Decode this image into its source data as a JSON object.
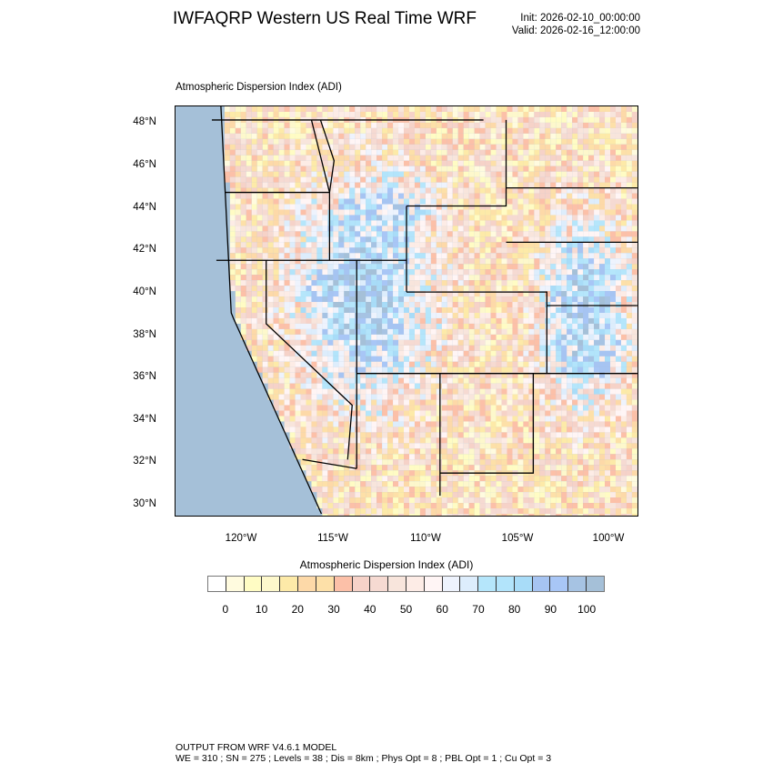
{
  "header": {
    "title": "IWFAQRP Western US Real Time WRF",
    "init": "Init: 2026-02-10_00:00:00",
    "valid": "Valid: 2026-02-16_12:00:00"
  },
  "map": {
    "subtitle": "Atmospheric Dispersion Index   (ADI)",
    "lat_labels": [
      "48°N",
      "46°N",
      "44°N",
      "42°N",
      "40°N",
      "38°N",
      "36°N",
      "34°N",
      "32°N",
      "30°N"
    ],
    "lon_labels": [
      "120°W",
      "115°W",
      "110°W",
      "105°W",
      "100°W"
    ],
    "ocean_color": "#a5c0d8"
  },
  "colorbar": {
    "title": "Atmospheric Dispersion Index  (ADI)",
    "labels": [
      "0",
      "10",
      "20",
      "30",
      "40",
      "50",
      "60",
      "70",
      "80",
      "90",
      "100"
    ],
    "colors": [
      "#ffffff",
      "#fffbdf",
      "#fffcc4",
      "#fdf8cc",
      "#fdeaa8",
      "#fdd9a8",
      "#fde0a8",
      "#fcc0a8",
      "#f6d2c8",
      "#f6dad2",
      "#f8e5dc",
      "#fdece6",
      "#fff5f5",
      "#eef3fd",
      "#ddedfc",
      "#b5e6fb",
      "#b2e4fb",
      "#a8dcf8",
      "#a6c4f2",
      "#a8c6f6",
      "#a6c3e3",
      "#a5c0d8"
    ]
  },
  "footer": {
    "line1": "OUTPUT FROM WRF V4.6.1 MODEL",
    "line2": "WE = 310 ; SN = 275 ; Levels = 38 ; Dis = 8km ; Phys Opt = 8 ; PBL Opt = 1 ; Cu Opt = 3"
  }
}
